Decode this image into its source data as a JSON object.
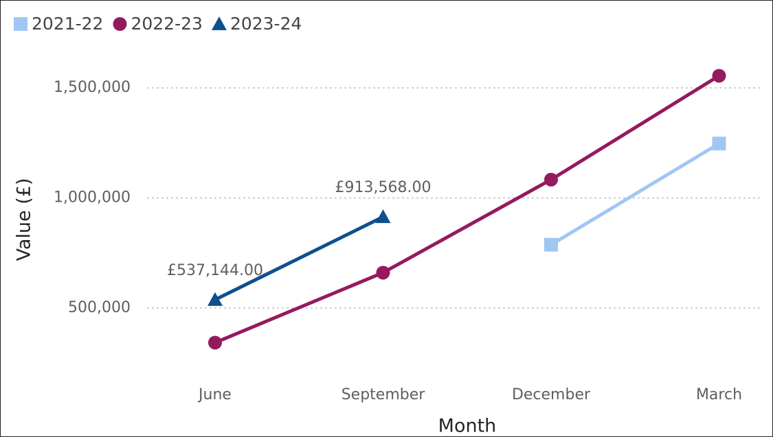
{
  "chart_data": {
    "type": "line",
    "x_label": "Month",
    "y_label": "Value (£)",
    "categories": [
      "June",
      "September",
      "December",
      "March"
    ],
    "series": [
      {
        "name": "2021-22",
        "color": "#9fc7f3",
        "marker": "square",
        "values": [
          null,
          null,
          787000,
          1247000
        ]
      },
      {
        "name": "2022-23",
        "color": "#951a5d",
        "marker": "circle",
        "values": [
          342000,
          660000,
          1083000,
          1555000
        ]
      },
      {
        "name": "2023-24",
        "color": "#0f4f8e",
        "marker": "triangle",
        "values": [
          537144,
          913568,
          null,
          null
        ],
        "value_labels": [
          "£537,144.00",
          "£913,568.00",
          null,
          null
        ]
      }
    ],
    "ylim": [
      200000,
      1650000
    ],
    "yticks": [
      {
        "value": 500000,
        "label": "500,000"
      },
      {
        "value": 1000000,
        "label": "1,000,000"
      },
      {
        "value": 1500000,
        "label": "1,500,000"
      }
    ],
    "grid": true,
    "legend": "top-left"
  }
}
